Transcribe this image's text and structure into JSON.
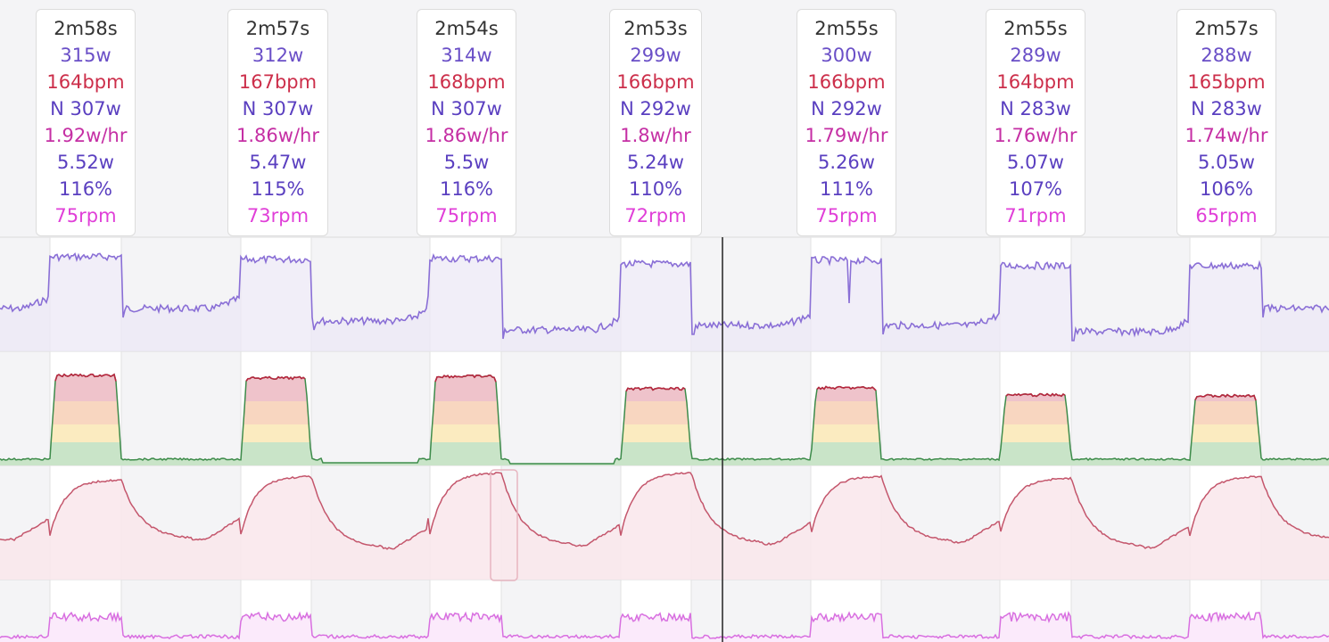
{
  "chart_data": {
    "type": "line",
    "panels": [
      "power",
      "hr_zones",
      "heart_rate",
      "cadence"
    ],
    "intervals": [
      {
        "duration": "2m58s",
        "power": "315w",
        "hr": "164bpm",
        "np": "N 307w",
        "w_hr": "1.92w/hr",
        "kj": "5.52w",
        "pct": "116%",
        "cadence": "75rpm"
      },
      {
        "duration": "2m57s",
        "power": "312w",
        "hr": "167bpm",
        "np": "N 307w",
        "w_hr": "1.86w/hr",
        "kj": "5.47w",
        "pct": "115%",
        "cadence": "73rpm"
      },
      {
        "duration": "2m54s",
        "power": "314w",
        "hr": "168bpm",
        "np": "N 307w",
        "w_hr": "1.86w/hr",
        "kj": "5.5w",
        "pct": "116%",
        "cadence": "75rpm"
      },
      {
        "duration": "2m53s",
        "power": "299w",
        "hr": "166bpm",
        "np": "N 292w",
        "w_hr": "1.8w/hr",
        "kj": "5.24w",
        "pct": "110%",
        "cadence": "72rpm"
      },
      {
        "duration": "2m55s",
        "power": "300w",
        "hr": "166bpm",
        "np": "N 292w",
        "w_hr": "1.79w/hr",
        "kj": "5.26w",
        "pct": "111%",
        "cadence": "75rpm"
      },
      {
        "duration": "2m55s",
        "power": "289w",
        "hr": "164bpm",
        "np": "N 283w",
        "w_hr": "1.76w/hr",
        "kj": "5.07w",
        "pct": "107%",
        "cadence": "71rpm"
      },
      {
        "duration": "2m57s",
        "power": "288w",
        "hr": "165bpm",
        "np": "N 283w",
        "w_hr": "1.74w/hr",
        "kj": "5.05w",
        "pct": "106%",
        "cadence": "65rpm"
      }
    ]
  },
  "colors": {
    "power_line": "#8a6fd6",
    "power_fill": "#ece8f6",
    "zone_line_high": "#b8263f",
    "zone_line_low": "#3d8b4a",
    "zone_fill_1": "#c9e4c8",
    "zone_fill_2": "#fbebc0",
    "zone_fill_3": "#f8d6c0",
    "zone_fill_4": "#efc3cb",
    "hr_line": "#c4566c",
    "hr_fill": "#f9e8ec",
    "cad_line": "#d86fe0",
    "cad_fill": "#fbeafb",
    "cursor": "#222222",
    "highlight_bg": "#ffffff"
  }
}
